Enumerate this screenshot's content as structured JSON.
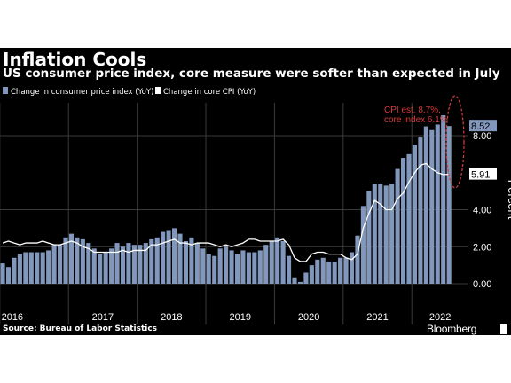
{
  "header": {
    "title": "Inflation Cools",
    "subtitle": "US consumer price index, core measure were softer than expected in July"
  },
  "footer": {
    "source": "Source: Bureau of Labor Statistics",
    "brand": "Bloomberg"
  },
  "colors": {
    "background": "#000000",
    "bar": "#8197bb",
    "core_line": "#ffffff",
    "grid": "#3a3a3a",
    "annotation": "#d93a3a",
    "text": "#ffffff"
  },
  "chart_data": {
    "type": "bar",
    "title": "Inflation Cools",
    "subtitle": "US consumer price index, core measure were softer than expected in July",
    "ylabel": "Percent",
    "ylim": [
      -0.6,
      9.2
    ],
    "yticks": [
      0,
      2,
      4,
      8
    ],
    "ytick_labels": [
      "0.00",
      "2.00",
      "4.00",
      "8.00"
    ],
    "x_start": "2016-01",
    "x_end": "2022-07",
    "year_labels": [
      "2016",
      "2017",
      "2018",
      "2019",
      "2020",
      "2021",
      "2022"
    ],
    "grid": true,
    "legend_position": "top-left",
    "categories": [
      "2016-01",
      "2016-02",
      "2016-03",
      "2016-04",
      "2016-05",
      "2016-06",
      "2016-07",
      "2016-08",
      "2016-09",
      "2016-10",
      "2016-11",
      "2016-12",
      "2017-01",
      "2017-02",
      "2017-03",
      "2017-04",
      "2017-05",
      "2017-06",
      "2017-07",
      "2017-08",
      "2017-09",
      "2017-10",
      "2017-11",
      "2017-12",
      "2018-01",
      "2018-02",
      "2018-03",
      "2018-04",
      "2018-05",
      "2018-06",
      "2018-07",
      "2018-08",
      "2018-09",
      "2018-10",
      "2018-11",
      "2018-12",
      "2019-01",
      "2019-02",
      "2019-03",
      "2019-04",
      "2019-05",
      "2019-06",
      "2019-07",
      "2019-08",
      "2019-09",
      "2019-10",
      "2019-11",
      "2019-12",
      "2020-01",
      "2020-02",
      "2020-03",
      "2020-04",
      "2020-05",
      "2020-06",
      "2020-07",
      "2020-08",
      "2020-09",
      "2020-10",
      "2020-11",
      "2020-12",
      "2021-01",
      "2021-02",
      "2021-03",
      "2021-04",
      "2021-05",
      "2021-06",
      "2021-07",
      "2021-08",
      "2021-09",
      "2021-10",
      "2021-11",
      "2021-12",
      "2022-01",
      "2022-02",
      "2022-03",
      "2022-04",
      "2022-05",
      "2022-06",
      "2022-07"
    ],
    "series": [
      {
        "name": "Change in consumer price index (YoY)",
        "kind": "bar",
        "color": "#8197bb",
        "values": [
          1.1,
          0.9,
          1.4,
          1.6,
          1.7,
          1.7,
          1.7,
          1.7,
          1.8,
          2.1,
          2.1,
          2.5,
          2.7,
          2.5,
          2.4,
          2.2,
          1.9,
          1.6,
          1.7,
          1.9,
          2.2,
          2.0,
          2.2,
          2.1,
          2.1,
          2.2,
          2.4,
          2.5,
          2.8,
          2.9,
          3.0,
          2.7,
          2.3,
          2.5,
          2.2,
          1.9,
          1.6,
          1.5,
          1.9,
          2.0,
          1.8,
          1.6,
          1.8,
          1.7,
          1.7,
          1.8,
          2.1,
          2.3,
          2.5,
          2.3,
          1.5,
          0.3,
          0.1,
          0.6,
          1.0,
          1.3,
          1.4,
          1.2,
          1.2,
          1.4,
          1.4,
          1.7,
          2.6,
          4.2,
          5.0,
          5.4,
          5.4,
          5.3,
          5.4,
          6.2,
          6.8,
          7.0,
          7.5,
          7.9,
          8.5,
          8.3,
          8.6,
          9.1,
          8.52
        ]
      },
      {
        "name": "Change in core CPI (YoY)",
        "kind": "line",
        "color": "#ffffff",
        "values": [
          2.2,
          2.3,
          2.2,
          2.1,
          2.2,
          2.2,
          2.2,
          2.3,
          2.2,
          2.1,
          2.1,
          2.2,
          2.3,
          2.2,
          2.0,
          1.9,
          1.7,
          1.7,
          1.7,
          1.7,
          1.7,
          1.8,
          1.7,
          1.8,
          1.8,
          1.8,
          2.1,
          2.1,
          2.2,
          2.3,
          2.4,
          2.2,
          2.2,
          2.1,
          2.2,
          2.2,
          2.2,
          2.1,
          2.0,
          2.1,
          2.0,
          2.1,
          2.2,
          2.4,
          2.4,
          2.3,
          2.3,
          2.3,
          2.3,
          2.4,
          2.1,
          1.4,
          1.2,
          1.2,
          1.6,
          1.7,
          1.7,
          1.6,
          1.6,
          1.6,
          1.4,
          1.3,
          1.6,
          3.0,
          3.8,
          4.5,
          4.3,
          4.0,
          4.0,
          4.6,
          4.9,
          5.5,
          6.0,
          6.4,
          6.5,
          6.2,
          6.0,
          5.9,
          5.91
        ]
      }
    ],
    "value_labels": [
      {
        "series": "Change in consumer price index (YoY)",
        "text": "8.52"
      },
      {
        "series": "Change in core CPI (YoY)",
        "text": "5.91"
      }
    ],
    "annotation": {
      "lines": [
        "CPI est. 8.7%,",
        "core index 6.1%"
      ],
      "color": "#d93a3a"
    }
  }
}
